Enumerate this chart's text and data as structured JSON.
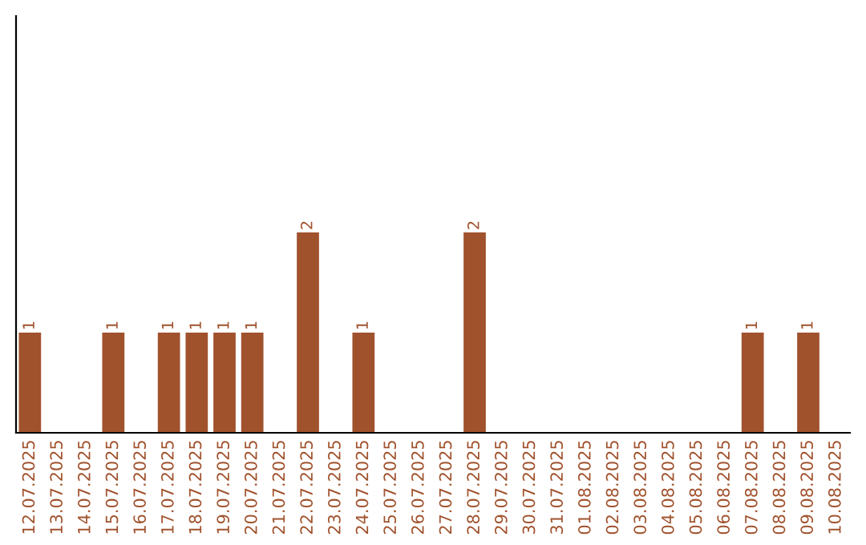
{
  "chart_data": {
    "type": "bar",
    "categories": [
      "12.07.2025",
      "13.07.2025",
      "14.07.2025",
      "15.07.2025",
      "16.07.2025",
      "17.07.2025",
      "18.07.2025",
      "19.07.2025",
      "20.07.2025",
      "21.07.2025",
      "22.07.2025",
      "23.07.2025",
      "24.07.2025",
      "25.07.2025",
      "26.07.2025",
      "27.07.2025",
      "28.07.2025",
      "29.07.2025",
      "30.07.2025",
      "31.07.2025",
      "01.08.2025",
      "02.08.2025",
      "03.08.2025",
      "04.08.2025",
      "05.08.2025",
      "06.08.2025",
      "07.08.2025",
      "08.08.2025",
      "09.08.2025",
      "10.08.2025"
    ],
    "values": [
      1,
      0,
      0,
      1,
      0,
      1,
      1,
      1,
      1,
      0,
      2,
      0,
      1,
      0,
      0,
      0,
      2,
      0,
      0,
      0,
      0,
      0,
      0,
      0,
      0,
      0,
      1,
      0,
      1,
      0
    ],
    "value_labels": [
      "1",
      null,
      null,
      "1",
      null,
      "1",
      "1",
      "1",
      "1",
      null,
      "2",
      null,
      "1",
      null,
      null,
      null,
      "2",
      null,
      null,
      null,
      null,
      null,
      null,
      null,
      null,
      null,
      "1",
      null,
      "1",
      null
    ],
    "color": "#a0522d",
    "ylim": [
      0,
      4.16
    ],
    "tick_labels": "x",
    "grid": false,
    "legend": false
  }
}
